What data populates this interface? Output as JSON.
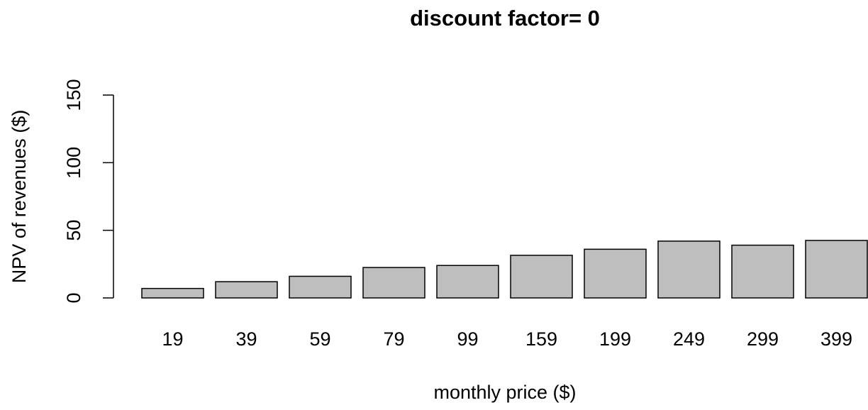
{
  "chart_data": {
    "type": "bar",
    "title": "discount factor= 0",
    "xlabel": "monthly price ($)",
    "ylabel": "NPV of revenues ($)",
    "categories": [
      "19",
      "39",
      "59",
      "79",
      "99",
      "159",
      "199",
      "249",
      "299",
      "399"
    ],
    "values": [
      7,
      12,
      16,
      22.5,
      24,
      31.5,
      36,
      42,
      39,
      42.5
    ],
    "ylim": [
      0,
      150
    ],
    "yticks": [
      "0",
      "50",
      "100",
      "150"
    ],
    "grid": false,
    "bar_color": "#bebebe",
    "edge_color": "#000000"
  }
}
